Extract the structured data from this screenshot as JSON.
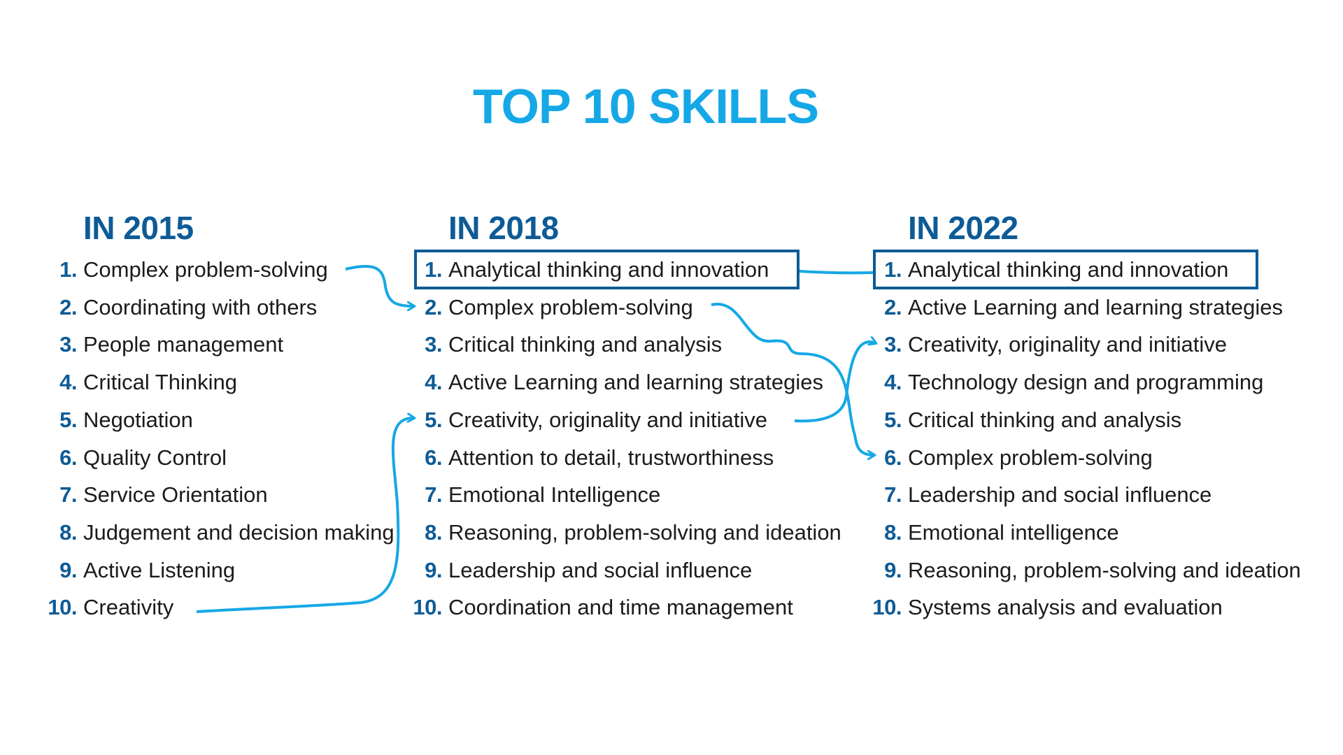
{
  "title": "TOP 10 SKILLS",
  "colors": {
    "accent": "#16A8E6",
    "primary": "#0D5B96",
    "text": "#1B1B1B"
  },
  "columns": [
    {
      "heading": "IN 2015",
      "items": [
        {
          "num": "1.",
          "text": "Complex problem-solving"
        },
        {
          "num": "2.",
          "text": "Coordinating with others"
        },
        {
          "num": "3.",
          "text": "People management"
        },
        {
          "num": "4.",
          "text": "Critical Thinking"
        },
        {
          "num": "5.",
          "text": "Negotiation"
        },
        {
          "num": "6.",
          "text": "Quality Control"
        },
        {
          "num": "7.",
          "text": "Service Orientation"
        },
        {
          "num": "8.",
          "text": "Judgement and decision making"
        },
        {
          "num": "9.",
          "text": "Active Listening"
        },
        {
          "num": "10.",
          "text": "Creativity"
        }
      ]
    },
    {
      "heading": "IN 2018",
      "items": [
        {
          "num": "1.",
          "text": "Analytical thinking and innovation"
        },
        {
          "num": "2.",
          "text": "Complex problem-solving"
        },
        {
          "num": "3.",
          "text": "Critical thinking and analysis"
        },
        {
          "num": "4.",
          "text": "Active Learning and learning strategies"
        },
        {
          "num": "5.",
          "text": "Creativity, originality and initiative"
        },
        {
          "num": "6.",
          "text": "Attention to detail, trustworthiness"
        },
        {
          "num": "7.",
          "text": "Emotional Intelligence"
        },
        {
          "num": "8.",
          "text": "Reasoning, problem-solving and ideation"
        },
        {
          "num": "9.",
          "text": "Leadership and social influence"
        },
        {
          "num": "10.",
          "text": "Coordination and time management"
        }
      ]
    },
    {
      "heading": "IN 2022",
      "items": [
        {
          "num": "1.",
          "text": "Analytical thinking and innovation"
        },
        {
          "num": "2.",
          "text": "Active Learning and learning strategies"
        },
        {
          "num": "3.",
          "text": "Creativity, originality and initiative"
        },
        {
          "num": "4.",
          "text": "Technology design and programming"
        },
        {
          "num": "5.",
          "text": "Critical thinking and analysis"
        },
        {
          "num": "6.",
          "text": "Complex problem-solving"
        },
        {
          "num": "7.",
          "text": "Leadership and social influence"
        },
        {
          "num": "8.",
          "text": "Emotional intelligence"
        },
        {
          "num": "9.",
          "text": "Reasoning, problem-solving and ideation"
        },
        {
          "num": "10.",
          "text": "Systems analysis and evaluation"
        }
      ]
    }
  ]
}
